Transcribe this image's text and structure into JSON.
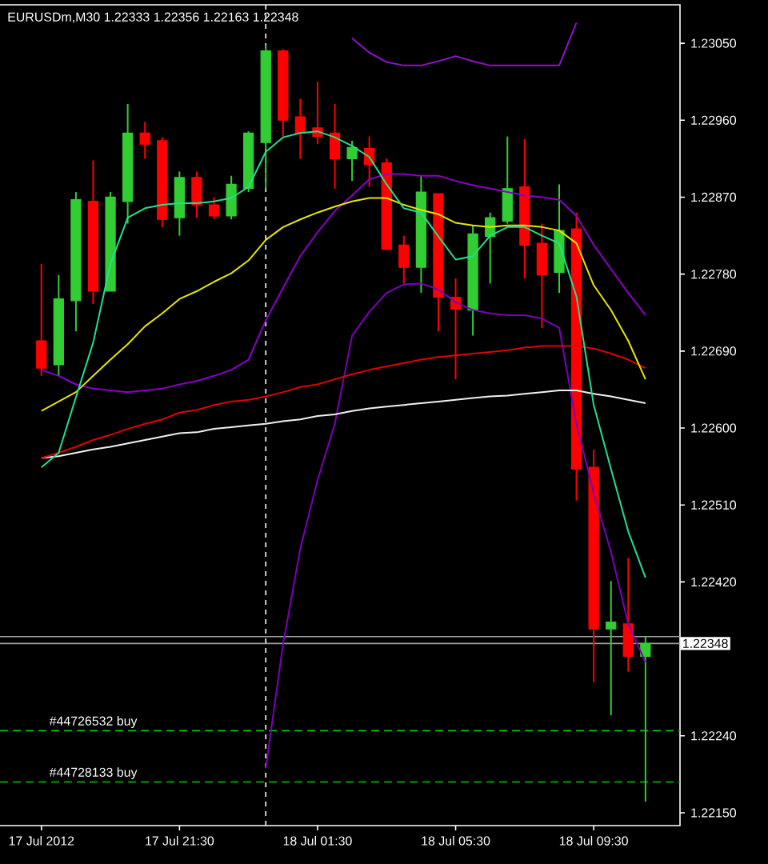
{
  "chart_data": {
    "type": "candlestick",
    "title": "EURUSDm,M30  1.22333 1.22356 1.22163 1.22348",
    "categories": [
      "17 Jul 2012",
      null,
      null,
      null,
      null,
      null,
      null,
      null,
      "17 Jul 21:30",
      null,
      null,
      null,
      null,
      null,
      null,
      null,
      "18 Jul 01:30",
      null,
      null,
      null,
      null,
      null,
      null,
      null,
      "18 Jul 05:30",
      null,
      null,
      null,
      null,
      null,
      null,
      null,
      "18 Jul 09:30",
      null,
      null,
      null
    ],
    "ohlc": [
      [
        1.22702,
        1.22792,
        1.22661,
        1.2267
      ],
      [
        1.22674,
        1.22779,
        1.22661,
        1.22751
      ],
      [
        1.22749,
        1.22876,
        1.22713,
        1.22867
      ],
      [
        1.22865,
        1.22913,
        1.22745,
        1.2276
      ],
      [
        1.2276,
        1.22876,
        1.2276,
        1.2287
      ],
      [
        1.22865,
        1.22979,
        1.22839,
        1.22945
      ],
      [
        1.22945,
        1.22958,
        1.22915,
        1.22932
      ],
      [
        1.22936,
        1.2294,
        1.22835,
        1.22844
      ],
      [
        1.22846,
        1.229,
        1.22825,
        1.22893
      ],
      [
        1.22893,
        1.229,
        1.22846,
        1.22861
      ],
      [
        1.22861,
        1.2287,
        1.22844,
        1.22848
      ],
      [
        1.22848,
        1.22895,
        1.22844,
        1.22885
      ],
      [
        1.2288,
        1.22947,
        1.22876,
        1.22945
      ],
      [
        1.22934,
        1.23048,
        1.2288,
        1.23041
      ],
      [
        1.23041,
        1.23043,
        1.22941,
        1.2296
      ],
      [
        1.22964,
        1.22985,
        1.22915,
        1.22945
      ],
      [
        1.22951,
        1.23005,
        1.22932,
        1.22941
      ],
      [
        1.22945,
        1.22979,
        1.2288,
        1.22915
      ],
      [
        1.22915,
        1.22936,
        1.22889,
        1.22928
      ],
      [
        1.22927,
        1.22941,
        1.22882,
        1.22908
      ],
      [
        1.2291,
        1.22915,
        1.22809,
        1.22809
      ],
      [
        1.22814,
        1.22825,
        1.22769,
        1.22788
      ],
      [
        1.22788,
        1.22895,
        1.22758,
        1.22876
      ],
      [
        1.22874,
        1.22874,
        1.22713,
        1.22753
      ],
      [
        1.22753,
        1.22775,
        1.22657,
        1.22739
      ],
      [
        1.22738,
        1.22837,
        1.22708,
        1.22827
      ],
      [
        1.22824,
        1.22852,
        1.22769,
        1.22846
      ],
      [
        1.22842,
        1.22941,
        1.22839,
        1.2288
      ],
      [
        1.22882,
        1.22938,
        1.22775,
        1.22814
      ],
      [
        1.22816,
        1.22839,
        1.22717,
        1.22779
      ],
      [
        1.22782,
        1.22885,
        1.22758,
        1.22831
      ],
      [
        1.22833,
        1.22852,
        1.22515,
        1.22552
      ],
      [
        1.22554,
        1.22575,
        1.22303,
        1.22365
      ],
      [
        1.22365,
        1.22421,
        1.22264,
        1.22373
      ],
      [
        1.22371,
        1.22448,
        1.22315,
        1.22333
      ],
      [
        1.22333,
        1.22356,
        1.22163,
        1.22348
      ]
    ],
    "colors": [
      "#ff0000",
      "#32cd32",
      "#32cd32",
      "#ff0000",
      "#32cd32",
      "#32cd32",
      "#ff0000",
      "#ff0000",
      "#32cd32",
      "#ff0000",
      "#ff0000",
      "#32cd32",
      "#32cd32",
      "#32cd32",
      "#ff0000",
      "#ff0000",
      "#ff0000",
      "#ff0000",
      "#32cd32",
      "#ff0000",
      "#ff0000",
      "#ff0000",
      "#32cd32",
      "#ff0000",
      "#ff0000",
      "#32cd32",
      "#32cd32",
      "#32cd32",
      "#ff0000",
      "#ff0000",
      "#32cd32",
      "#ff0000",
      "#ff0000",
      "#32cd32",
      "#ff0000",
      "#32cd32"
    ],
    "series": [
      {
        "type": "line",
        "color": "#8a00c8",
        "values": [
          1.22668,
          1.22661,
          1.22651,
          1.22646,
          1.22644,
          1.22642,
          1.22644,
          1.22646,
          1.22651,
          1.22655,
          1.22661,
          1.22668,
          1.2268,
          1.22726,
          1.22764,
          1.22801,
          1.22829,
          1.22854,
          1.22872,
          1.22891,
          1.22897,
          1.22897,
          1.22895,
          1.22895,
          1.22889,
          1.22884,
          1.2288,
          1.22876,
          1.22872,
          1.2287,
          1.22867,
          1.22848,
          1.22814,
          1.22786,
          1.22758,
          1.22732
        ]
      },
      {
        "type": "line",
        "color": "#9010d0",
        "values": [
          null,
          null,
          null,
          null,
          null,
          null,
          null,
          null,
          null,
          null,
          null,
          null,
          null,
          null,
          null,
          null,
          null,
          null,
          1.23056,
          1.23039,
          1.23028,
          1.23024,
          1.23024,
          1.23029,
          1.23035,
          1.23029,
          1.23024,
          1.23024,
          1.23024,
          1.23024,
          1.23024,
          1.23074,
          null,
          null,
          null,
          null
        ]
      },
      {
        "type": "line",
        "color": "#7c00b8",
        "values": [
          null,
          null,
          null,
          null,
          null,
          null,
          null,
          null,
          null,
          null,
          null,
          null,
          null,
          1.22202,
          1.22347,
          1.22459,
          1.22539,
          1.22605,
          1.22708,
          1.22736,
          1.22758,
          1.22768,
          1.22769,
          1.22762,
          1.22747,
          1.22738,
          1.22734,
          1.22732,
          1.22732,
          1.22728,
          1.22717,
          1.22605,
          1.22524,
          1.22455,
          1.22371,
          1.22326
        ]
      },
      {
        "type": "line",
        "color": "#f0f0f0",
        "values": [
          1.22565,
          1.22567,
          1.22571,
          1.22575,
          1.22578,
          1.22582,
          1.22586,
          1.2259,
          1.22594,
          1.22595,
          1.22599,
          1.22601,
          1.22603,
          1.22605,
          1.22608,
          1.2261,
          1.22614,
          1.22616,
          1.2262,
          1.22623,
          1.22625,
          1.22627,
          1.22629,
          1.22631,
          1.22633,
          1.22635,
          1.22637,
          1.22638,
          1.2264,
          1.22642,
          1.22644,
          1.22644,
          1.2264,
          1.22637,
          1.22633,
          1.22629
        ]
      },
      {
        "type": "line",
        "color": "#e00000",
        "values": [
          1.22565,
          1.22571,
          1.22578,
          1.22586,
          1.22592,
          1.22599,
          1.22605,
          1.2261,
          1.22618,
          1.22621,
          1.22627,
          1.22631,
          1.22633,
          1.22637,
          1.22642,
          1.22648,
          1.22651,
          1.22657,
          1.22663,
          1.22668,
          1.22672,
          1.22676,
          1.2268,
          1.22683,
          1.22685,
          1.22687,
          1.22689,
          1.22691,
          1.22694,
          1.22696,
          1.22696,
          1.22696,
          1.22693,
          1.22687,
          1.2268,
          1.2267
        ]
      },
      {
        "type": "line",
        "color": "#e6e600",
        "values": [
          1.2262,
          1.22631,
          1.22642,
          1.22661,
          1.2268,
          1.22698,
          1.22719,
          1.22734,
          1.22751,
          1.2276,
          1.22771,
          1.22781,
          1.22796,
          1.2282,
          1.22835,
          1.22844,
          1.22852,
          1.22859,
          1.22865,
          1.22869,
          1.22869,
          1.22861,
          1.22855,
          1.2285,
          1.2284,
          1.22837,
          1.22835,
          1.22837,
          1.22837,
          1.22835,
          1.22831,
          1.22816,
          1.22767,
          1.22738,
          1.22702,
          1.22657
        ]
      },
      {
        "type": "line",
        "color": "#20e090",
        "values": [
          1.22554,
          1.22571,
          1.22636,
          1.227,
          1.22792,
          1.22846,
          1.22857,
          1.22861,
          1.22863,
          1.22863,
          1.22865,
          1.22869,
          1.22882,
          1.22923,
          1.2294,
          1.22945,
          1.22947,
          1.2294,
          1.2293,
          1.22917,
          1.22885,
          1.22857,
          1.22852,
          1.22824,
          1.22797,
          1.22801,
          1.22825,
          1.22835,
          1.22835,
          1.22825,
          1.22816,
          1.22754,
          1.22627,
          1.22552,
          1.22479,
          1.22425
        ]
      }
    ],
    "ylim": [
      1.22135,
      1.23095
    ],
    "yticks": [
      {
        "value": 1.2215,
        "label": "1.22150"
      },
      {
        "value": 1.2224,
        "label": "1.22240"
      },
      {
        "value": 1.2242,
        "label": "1.22420"
      },
      {
        "value": 1.2251,
        "label": "1.22510"
      },
      {
        "value": 1.226,
        "label": "1.22600"
      },
      {
        "value": 1.2269,
        "label": "1.22690"
      },
      {
        "value": 1.2278,
        "label": "1.22780"
      },
      {
        "value": 1.2287,
        "label": "1.22870"
      },
      {
        "value": 1.2296,
        "label": "1.22960"
      },
      {
        "value": 1.2305,
        "label": "1.23050"
      }
    ],
    "ref_lines": [
      {
        "axis": "y",
        "value": 1.22356,
        "color": "#a0a0a0"
      },
      {
        "axis": "y",
        "value": 1.22348,
        "label": "1.22348",
        "color": "#a0a0a0"
      },
      {
        "axis": "y",
        "value": 1.22246,
        "label": "#44726532 buy",
        "color": "#00c800",
        "line_style": "dashed"
      },
      {
        "axis": "y",
        "value": 1.22186,
        "label": "#44728133 buy",
        "color": "#00c800",
        "line_style": "dashed"
      }
    ]
  }
}
